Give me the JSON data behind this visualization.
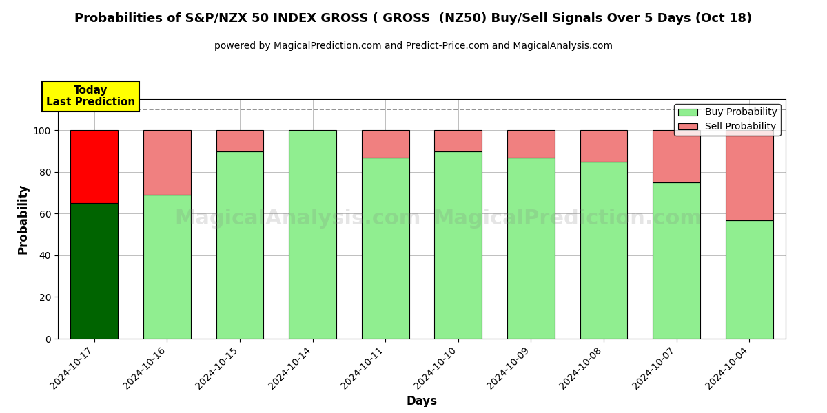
{
  "title": "Probabilities of S&P/NZX 50 INDEX GROSS ( GROSS  (NZ50) Buy/Sell Signals Over 5 Days (Oct 18)",
  "subtitle": "powered by MagicalPrediction.com and Predict-Price.com and MagicalAnalysis.com",
  "xlabel": "Days",
  "ylabel": "Probability",
  "dates": [
    "2024-10-17",
    "2024-10-16",
    "2024-10-15",
    "2024-10-14",
    "2024-10-11",
    "2024-10-10",
    "2024-10-09",
    "2024-10-08",
    "2024-10-07",
    "2024-10-04"
  ],
  "buy_probs": [
    65,
    69,
    90,
    100,
    87,
    90,
    87,
    85,
    75,
    57
  ],
  "sell_probs": [
    35,
    31,
    10,
    0,
    13,
    10,
    13,
    15,
    25,
    43
  ],
  "buy_colors": [
    "#006400",
    "#90EE90",
    "#90EE90",
    "#90EE90",
    "#90EE90",
    "#90EE90",
    "#90EE90",
    "#90EE90",
    "#90EE90",
    "#90EE90"
  ],
  "sell_colors": [
    "#FF0000",
    "#F08080",
    "#F08080",
    "#F08080",
    "#F08080",
    "#F08080",
    "#F08080",
    "#F08080",
    "#F08080",
    "#F08080"
  ],
  "ylim_max": 115,
  "yticks": [
    0,
    20,
    40,
    60,
    80,
    100
  ],
  "today_box_color": "#FFFF00",
  "today_text": "Today\nLast Prediction",
  "watermark_text1": "MagicalAnalysis.com",
  "watermark_text2": "MagicalPrediction.com",
  "legend_buy_color": "#90EE90",
  "legend_sell_color": "#F08080",
  "bar_edge_color": "#000000",
  "bar_width": 0.65,
  "dashed_line_y": 110,
  "title_fontsize": 13,
  "subtitle_fontsize": 10,
  "axis_label_fontsize": 12,
  "tick_fontsize": 10
}
